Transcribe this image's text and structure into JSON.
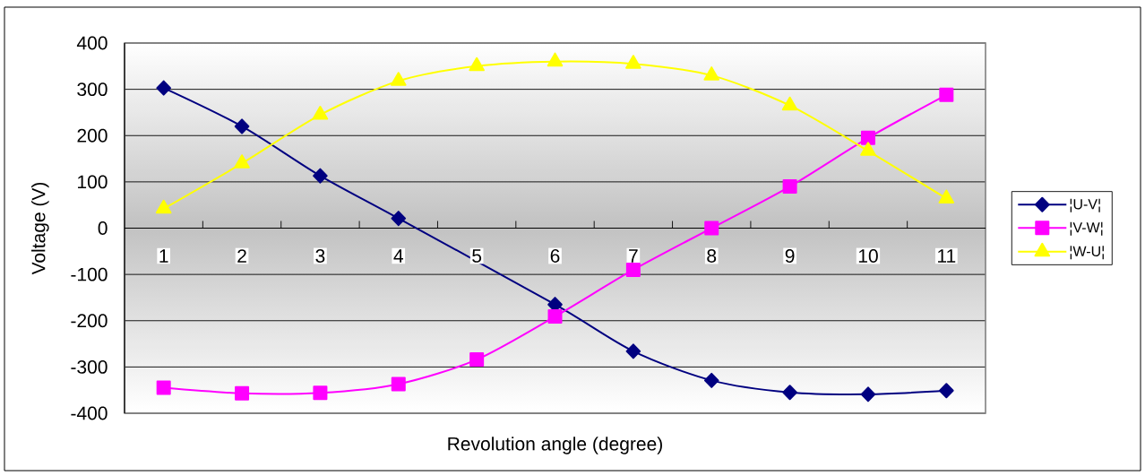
{
  "chart_data": {
    "type": "line",
    "xlabel": "Revolution angle (degree)",
    "ylabel": "Voltage (V)",
    "categories": [
      "1",
      "2",
      "3",
      "4",
      "5",
      "6",
      "7",
      "8",
      "9",
      "10",
      "11"
    ],
    "series": [
      {
        "name": "¦U-V¦",
        "color": "#000080",
        "marker": "diamond",
        "values": [
          303,
          220,
          113,
          21,
          null,
          -165,
          -266,
          -329,
          -355,
          -359,
          -351
        ]
      },
      {
        "name": "¦V-W¦",
        "color": "#ff00ff",
        "marker": "square",
        "values": [
          -345,
          -357,
          -356,
          -337,
          -284,
          -191,
          -90,
          0,
          90,
          195,
          288
        ]
      },
      {
        "name": "¦W-U¦",
        "color": "#ffff00",
        "marker": "triangle",
        "values": [
          42,
          140,
          245,
          318,
          350,
          360,
          355,
          330,
          265,
          167,
          64
        ]
      }
    ],
    "ylim": [
      -400,
      400
    ],
    "yticks": [
      -400,
      -300,
      -200,
      -100,
      0,
      100,
      200,
      300,
      400
    ],
    "grid": "y",
    "legend": "right",
    "line_style": "solid"
  }
}
